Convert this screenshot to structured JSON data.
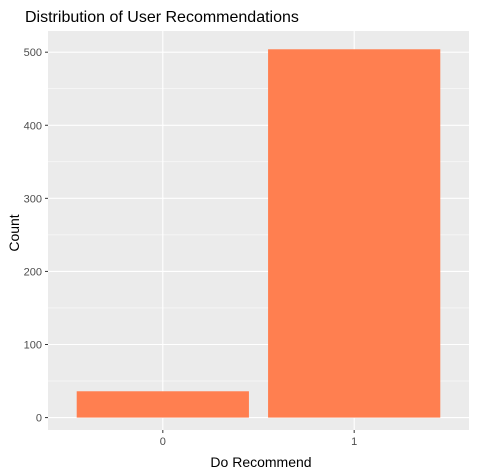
{
  "chart_data": {
    "type": "bar",
    "title": "Distribution of User Recommendations",
    "xlabel": "Do Recommend",
    "ylabel": "Count",
    "categories": [
      "0",
      "1"
    ],
    "values": [
      36,
      504
    ],
    "ylim": [
      -17,
      529
    ],
    "yticks": [
      0,
      100,
      200,
      300,
      400,
      500
    ],
    "grid": true,
    "colors": {
      "bar": "#ff7f50",
      "panel": "#ebebeb",
      "grid_major": "#ffffff",
      "tick": "#333333"
    }
  }
}
